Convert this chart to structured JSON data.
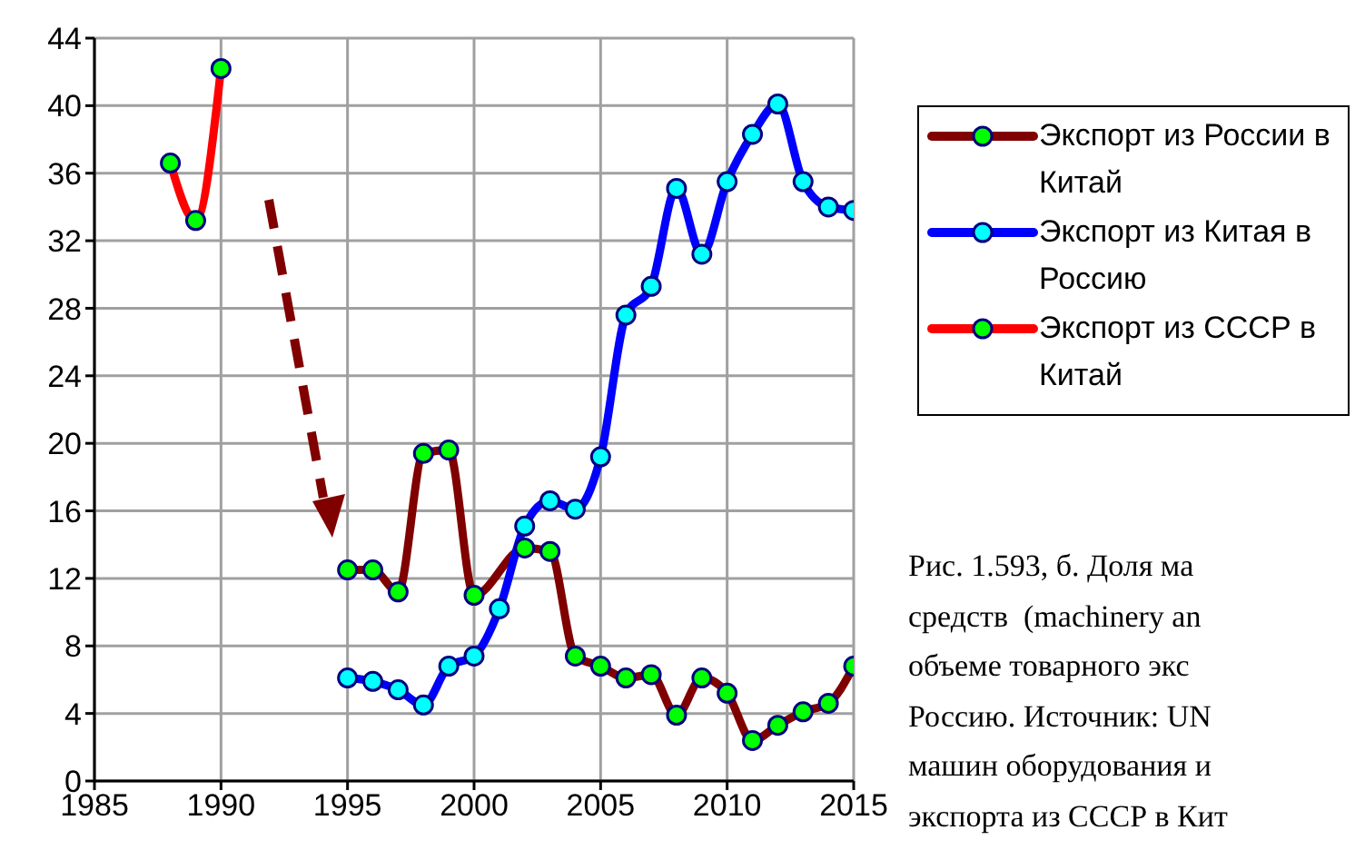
{
  "chart_data": {
    "type": "line",
    "xlim": [
      1985,
      2015
    ],
    "xticks": [
      1985,
      1990,
      1995,
      2000,
      2005,
      2010,
      2015
    ],
    "ylim": [
      0,
      44
    ],
    "yticks": [
      0,
      4,
      8,
      12,
      16,
      20,
      24,
      28,
      32,
      36,
      40,
      44
    ],
    "grid": true,
    "legend": "right",
    "marker": "circle",
    "line_style": "solid",
    "series": [
      {
        "name": "Экспорт из России в Китай",
        "color": "#800000",
        "x": [
          1995,
          1996,
          1997,
          1998,
          1999,
          2000,
          2001,
          2002,
          2003,
          2004,
          2005,
          2006,
          2007,
          2008,
          2009,
          2010,
          2011,
          2012,
          2013,
          2014,
          2015
        ],
        "values": [
          12.5,
          12.5,
          11.2,
          19.4,
          19.6,
          11.0,
          null,
          13.8,
          13.6,
          7.4,
          6.8,
          6.1,
          6.3,
          3.9,
          6.1,
          5.2,
          2.4,
          3.3,
          4.1,
          4.6,
          6.8
        ]
      },
      {
        "name": "Экспорт из Китая в Россию",
        "color": "#0000ff",
        "x": [
          1995,
          1996,
          1997,
          1998,
          1999,
          2000,
          2001,
          2002,
          2003,
          2004,
          2005,
          2006,
          2007,
          2008,
          2009,
          2010,
          2011,
          2012,
          2013,
          2014,
          2015
        ],
        "values": [
          6.1,
          5.9,
          5.4,
          4.5,
          6.8,
          7.4,
          10.2,
          15.1,
          16.6,
          16.1,
          19.2,
          27.6,
          29.3,
          35.1,
          31.2,
          35.5,
          38.3,
          40.1,
          35.5,
          34.0,
          33.8
        ]
      },
      {
        "name": "Экспорт из СССР в Китай",
        "color": "#ff0000",
        "x": [
          1988,
          1989,
          1990
        ],
        "values": [
          36.6,
          33.2,
          42.2
        ]
      }
    ],
    "annotations": [
      "Рис. 1.593, б. Доля ма",
      "средств  (machinery an",
      "объеме товарного экс",
      "Россию. Источник: UN",
      "машин оборудования и",
      "экспорта из СССР в Кит"
    ]
  }
}
